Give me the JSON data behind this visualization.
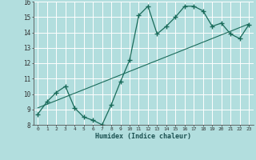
{
  "xlabel": "Humidex (Indice chaleur)",
  "background_color": "#b2dede",
  "grid_color": "#ffffff",
  "line_color": "#1a6b5a",
  "xlim": [
    -0.5,
    23.5
  ],
  "ylim": [
    8,
    16
  ],
  "xticks": [
    0,
    1,
    2,
    3,
    4,
    5,
    6,
    7,
    8,
    9,
    10,
    11,
    12,
    13,
    14,
    15,
    16,
    17,
    18,
    19,
    20,
    21,
    22,
    23
  ],
  "yticks": [
    8,
    9,
    10,
    11,
    12,
    13,
    14,
    15,
    16
  ],
  "data_x": [
    0,
    1,
    2,
    3,
    4,
    5,
    6,
    7,
    8,
    9,
    10,
    11,
    12,
    13,
    14,
    15,
    16,
    17,
    18,
    19,
    20,
    21,
    22,
    23
  ],
  "data_y": [
    8.7,
    9.5,
    10.1,
    10.5,
    9.1,
    8.5,
    8.3,
    8.0,
    9.3,
    10.8,
    12.2,
    15.1,
    15.7,
    13.9,
    14.4,
    15.0,
    15.7,
    15.7,
    15.4,
    14.4,
    14.6,
    13.9,
    13.6,
    14.5
  ],
  "trend_start_x": 0,
  "trend_end_x": 23,
  "trend_start_y": 9.1,
  "trend_end_y": 14.55
}
